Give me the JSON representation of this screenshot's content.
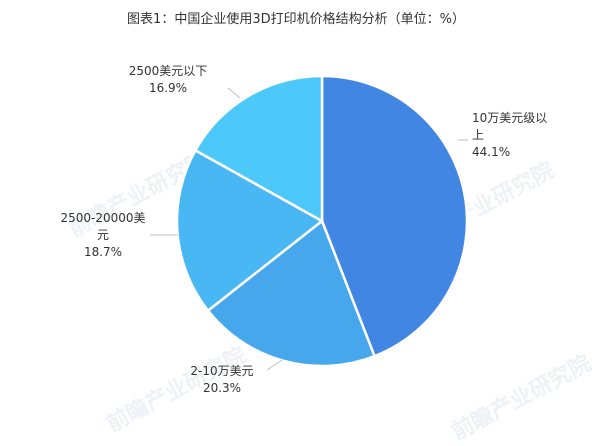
{
  "chart_data": {
    "type": "pie",
    "title": "图表1：中国企业使用3D打印机价格结构分析（单位：%）",
    "unit": "%",
    "slices": [
      {
        "label": "10万美元级以上",
        "label_lines": [
          "10万美元级以",
          "上"
        ],
        "value": 44.1,
        "value_label": "44.1%",
        "color": "#4286e4"
      },
      {
        "label": "2-10万美元",
        "label_lines": [
          "2-10万美元"
        ],
        "value": 20.3,
        "value_label": "20.3%",
        "color": "#47a7ec"
      },
      {
        "label": "2500-20000美元",
        "label_lines": [
          "2500-20000美",
          "元"
        ],
        "value": 18.7,
        "value_label": "18.7%",
        "color": "#48b7f3"
      },
      {
        "label": "2500美元以下",
        "label_lines": [
          "2500美元以下"
        ],
        "value": 16.9,
        "value_label": "16.9%",
        "color": "#4dc8fb"
      }
    ]
  },
  "watermark": {
    "text": "前瞻产业研究院"
  }
}
